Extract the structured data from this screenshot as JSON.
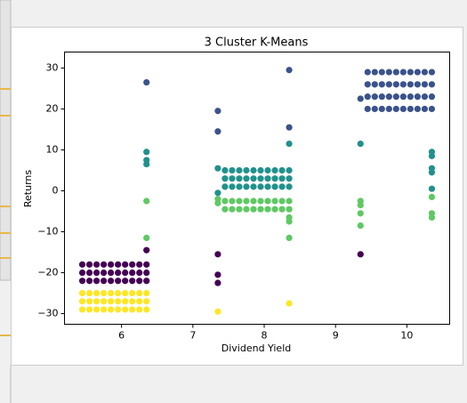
{
  "chart_data": {
    "type": "scatter",
    "title": "3 Cluster K-Means",
    "xlabel": "Dividend Yield",
    "ylabel": "Returns",
    "xlim": [
      5.2,
      10.6
    ],
    "ylim": [
      -32.6,
      33.9
    ],
    "xticks": [
      6,
      7,
      8,
      9,
      10
    ],
    "yticks": [
      {
        "value": -30,
        "label": "−30"
      },
      {
        "value": -20,
        "label": "−20"
      },
      {
        "value": -10,
        "label": "−10"
      },
      0,
      10,
      20,
      30
    ],
    "series": [
      {
        "color": "#440154",
        "x": [
          5.45,
          5.55,
          5.65,
          5.75,
          5.85,
          5.95,
          6.05,
          6.15,
          6.25,
          6.35,
          5.45,
          5.55,
          5.65,
          5.75,
          5.85,
          5.95,
          6.05,
          6.15,
          6.25,
          6.35,
          5.45,
          5.55,
          5.65,
          5.75,
          5.85,
          5.95,
          6.05,
          6.15,
          6.25,
          6.35,
          6.35,
          7.35,
          7.35,
          7.35,
          9.35
        ],
        "values": [
          -18,
          -18,
          -18,
          -18,
          -18,
          -18,
          -18,
          -18,
          -18,
          -18,
          -20,
          -20,
          -20,
          -20,
          -20,
          -20,
          -20,
          -20,
          -20,
          -20,
          -22,
          -22,
          -22,
          -22,
          -22,
          -22,
          -22,
          -22,
          -22,
          -22,
          -14.5,
          -15.5,
          -20.5,
          -22.5,
          -15.5
        ]
      },
      {
        "color": "#fde725",
        "x": [
          5.45,
          5.55,
          5.65,
          5.75,
          5.85,
          5.95,
          6.05,
          6.15,
          6.25,
          6.35,
          5.45,
          5.55,
          5.65,
          5.75,
          5.85,
          5.95,
          6.05,
          6.15,
          6.25,
          6.35,
          5.45,
          5.55,
          5.65,
          5.75,
          5.85,
          5.95,
          6.05,
          6.15,
          6.25,
          6.35,
          7.35,
          8.35
        ],
        "values": [
          -25,
          -25,
          -25,
          -25,
          -25,
          -25,
          -25,
          -25,
          -25,
          -25,
          -27,
          -27,
          -27,
          -27,
          -27,
          -27,
          -27,
          -27,
          -27,
          -27,
          -29,
          -29,
          -29,
          -29,
          -29,
          -29,
          -29,
          -29,
          -29,
          -29,
          -29.5,
          -27.5
        ]
      },
      {
        "color": "#3b528b",
        "x": [
          9.45,
          9.55,
          9.65,
          9.75,
          9.85,
          9.95,
          10.05,
          10.15,
          10.25,
          10.35,
          9.45,
          9.55,
          9.65,
          9.75,
          9.85,
          9.95,
          10.05,
          10.15,
          10.25,
          10.35,
          9.45,
          9.55,
          9.65,
          9.75,
          9.85,
          9.95,
          10.05,
          10.15,
          10.25,
          10.35,
          9.45,
          9.55,
          9.65,
          9.75,
          9.85,
          9.95,
          10.05,
          10.15,
          10.25,
          10.35,
          6.35,
          7.35,
          7.35,
          8.35,
          8.35,
          9.35
        ],
        "values": [
          20,
          20,
          20,
          20,
          20,
          20,
          20,
          20,
          20,
          20,
          23,
          23,
          23,
          23,
          23,
          23,
          23,
          23,
          23,
          23,
          26,
          26,
          26,
          26,
          26,
          26,
          26,
          26,
          26,
          26,
          29,
          29,
          29,
          29,
          29,
          29,
          29,
          29,
          29,
          29,
          26.5,
          19.5,
          14.5,
          29.5,
          15.5,
          22.5
        ]
      },
      {
        "color": "#21918c",
        "x": [
          7.45,
          7.55,
          7.65,
          7.75,
          7.85,
          7.95,
          8.05,
          8.15,
          8.25,
          8.35,
          7.45,
          7.55,
          7.65,
          7.75,
          7.85,
          7.95,
          8.05,
          8.15,
          8.25,
          8.35,
          7.45,
          7.55,
          7.65,
          7.75,
          7.85,
          7.95,
          8.05,
          8.15,
          8.25,
          8.35,
          6.35,
          6.35,
          6.35,
          8.35,
          9.35,
          10.35,
          10.35,
          10.35,
          10.35,
          10.35,
          7.35,
          7.35
        ],
        "values": [
          5,
          5,
          5,
          5,
          5,
          5,
          5,
          5,
          5,
          5,
          3,
          3,
          3,
          3,
          3,
          3,
          3,
          3,
          3,
          3,
          1,
          1,
          1,
          1,
          1,
          1,
          1,
          1,
          1,
          1,
          9.5,
          7.5,
          6.5,
          11.5,
          11.5,
          9.5,
          8.5,
          5.5,
          4.5,
          0.5,
          -0.5,
          5.5
        ]
      },
      {
        "color": "#5ec962",
        "x": [
          7.45,
          7.55,
          7.65,
          7.75,
          7.85,
          7.95,
          8.05,
          8.15,
          8.25,
          8.35,
          7.45,
          7.55,
          7.65,
          7.75,
          7.85,
          7.95,
          8.05,
          8.15,
          8.25,
          8.35,
          6.35,
          6.35,
          7.35,
          7.35,
          8.35,
          8.35,
          8.35,
          9.35,
          9.35,
          9.35,
          9.35,
          10.35,
          10.35,
          10.35
        ],
        "values": [
          -2.5,
          -2.5,
          -2.5,
          -2.5,
          -2.5,
          -2.5,
          -2.5,
          -2.5,
          -2.5,
          -2.5,
          -4.5,
          -4.5,
          -4.5,
          -4.5,
          -4.5,
          -4.5,
          -4.5,
          -4.5,
          -4.5,
          -4.5,
          -2.5,
          -11.5,
          -3,
          -2,
          -7.5,
          -11.5,
          -6.5,
          -2.5,
          -3.5,
          -5.5,
          -8.5,
          -1.5,
          -5.5,
          -6.5
        ]
      }
    ]
  }
}
